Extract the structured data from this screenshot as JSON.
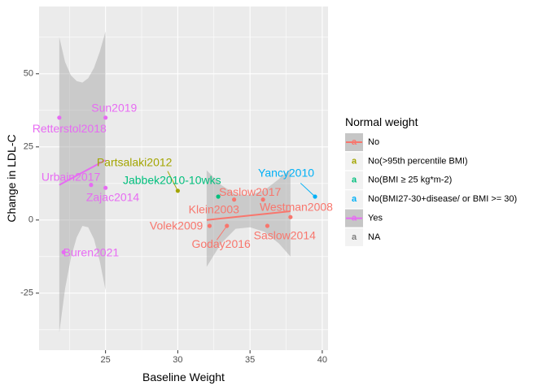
{
  "chart_data": {
    "type": "scatter",
    "xlabel": "Baseline Weight",
    "ylabel": "Change in LDL-C",
    "xlim": [
      20.4,
      40.4
    ],
    "ylim": [
      -44.5,
      73
    ],
    "x_ticks": [
      25,
      30,
      35,
      40
    ],
    "y_ticks": [
      -25,
      0,
      25,
      50
    ],
    "grid": true,
    "legend_position": "right",
    "legend": {
      "title": "Normal weight",
      "entries": [
        {
          "key": "no",
          "label": "No",
          "color": "#F8766D"
        },
        {
          "key": "no95",
          "label": "No(>95th percentile BMI)",
          "color": "#A3A500"
        },
        {
          "key": "nobmi25",
          "label": "No(BMI ≥ 25 kg*m-2)",
          "color": "#00BF7D"
        },
        {
          "key": "nobmi27",
          "label": "No(BMI27-30+disease/ or BMI >= 30)",
          "color": "#00B0F6"
        },
        {
          "key": "yes",
          "label": "Yes",
          "color": "#E76BF3"
        },
        {
          "key": "na",
          "label": "NA",
          "color": "#7F7F7F"
        }
      ]
    },
    "points": [
      {
        "x": 21.8,
        "y": 35,
        "group": "yes"
      },
      {
        "x": 25.0,
        "y": 35,
        "group": "yes"
      },
      {
        "x": 24.0,
        "y": 12,
        "group": "yes"
      },
      {
        "x": 25.0,
        "y": 11,
        "group": "yes"
      },
      {
        "x": 22.1,
        "y": -11,
        "group": "yes"
      },
      {
        "x": 30.0,
        "y": 10,
        "group": "no95"
      },
      {
        "x": 32.8,
        "y": 8,
        "group": "nobmi25"
      },
      {
        "x": 39.5,
        "y": 8,
        "group": "nobmi27"
      },
      {
        "x": 33.9,
        "y": 7,
        "group": "no"
      },
      {
        "x": 35.9,
        "y": 7,
        "group": "no"
      },
      {
        "x": 32.2,
        "y": -2,
        "group": "no"
      },
      {
        "x": 33.4,
        "y": -2,
        "group": "no"
      },
      {
        "x": 36.2,
        "y": -2,
        "group": "no"
      },
      {
        "x": 37.8,
        "y": 1,
        "group": "no"
      }
    ],
    "labels": [
      {
        "text": "Sun2019",
        "x": 25.6,
        "y": 38,
        "group": "yes"
      },
      {
        "text": "Retterstol2018",
        "x": 22.5,
        "y": 31,
        "group": "yes"
      },
      {
        "text": "Urbain2017",
        "x": 22.6,
        "y": 14.5,
        "group": "yes"
      },
      {
        "text": "Zajac2014",
        "x": 25.5,
        "y": 7.5,
        "group": "yes"
      },
      {
        "text": "Buren2021",
        "x": 24.0,
        "y": -11.4,
        "group": "yes"
      },
      {
        "text": "Partsalaki2012",
        "x": 27.0,
        "y": 19.5,
        "group": "no95"
      },
      {
        "text": "Jabbek2010-10wks",
        "x": 29.6,
        "y": 13.3,
        "group": "nobmi25"
      },
      {
        "text": "Yancy2010",
        "x": 37.5,
        "y": 15.8,
        "group": "nobmi27"
      },
      {
        "text": "Saslow2017",
        "x": 35.0,
        "y": 9.3,
        "group": "no"
      },
      {
        "text": "Klein2003",
        "x": 32.5,
        "y": 3.4,
        "group": "no"
      },
      {
        "text": "Westman2008",
        "x": 38.2,
        "y": 4.1,
        "group": "no"
      },
      {
        "text": "Volek2009",
        "x": 29.9,
        "y": -2.2,
        "group": "no"
      },
      {
        "text": "Goday2016",
        "x": 33.0,
        "y": -8.5,
        "group": "no"
      },
      {
        "text": "Saslow2014",
        "x": 37.4,
        "y": -5.6,
        "group": "no"
      }
    ],
    "segments": [
      {
        "x1": 29.3,
        "y1": 16.7,
        "x2": 30.0,
        "y2": 10,
        "group": "no95"
      },
      {
        "x1": 38.5,
        "y1": 12.6,
        "x2": 39.5,
        "y2": 8,
        "group": "nobmi27"
      },
      {
        "x1": 32.7,
        "y1": -6.8,
        "x2": 33.4,
        "y2": -2,
        "group": "no"
      }
    ],
    "trends": [
      {
        "group": "yes",
        "x": [
          21.8,
          25.0
        ],
        "y": [
          12,
          20.5
        ]
      },
      {
        "group": "no",
        "x": [
          32.0,
          37.8
        ],
        "y": [
          0,
          3
        ]
      }
    ],
    "bands": [
      {
        "group": "yes",
        "x": [
          21.8,
          22.2,
          22.6,
          23.0,
          23.4,
          23.8,
          24.2,
          24.6,
          25.0
        ],
        "upper": [
          62.5,
          54.0,
          49.5,
          47.5,
          47.0,
          48.5,
          52.0,
          57.5,
          64.5
        ],
        "lower": [
          -38.5,
          -23.5,
          -13.0,
          -6.0,
          -2.0,
          -2.5,
          -6.5,
          -14.0,
          -24.0
        ]
      },
      {
        "group": "no",
        "x": [
          32.0,
          33.0,
          34.0,
          35.0,
          36.0,
          37.0,
          37.8
        ],
        "upper": [
          17.0,
          12.0,
          8.8,
          8.5,
          10.2,
          14.0,
          17.5
        ],
        "lower": [
          -16.0,
          -8.0,
          -3.0,
          -2.5,
          -4.0,
          -8.0,
          -12.5
        ]
      }
    ]
  }
}
